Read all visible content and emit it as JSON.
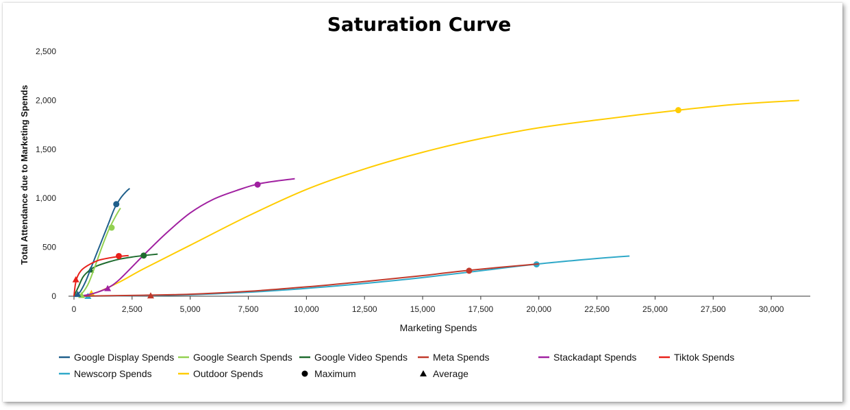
{
  "chart_data": {
    "type": "line",
    "title": "Saturation Curve",
    "xlabel": "Marketing Spends",
    "ylabel": "Total Attendance due to Marketing Spends",
    "xlim": [
      0,
      31500
    ],
    "ylim": [
      0,
      2500
    ],
    "x_ticks": [
      "0",
      "2,500",
      "5,000",
      "7,500",
      "10,000",
      "12,500",
      "15,000",
      "17,500",
      "20,000",
      "22,500",
      "25,000",
      "27,500",
      "30,000"
    ],
    "y_ticks": [
      "0",
      "500",
      "1,000",
      "1,500",
      "2,000",
      "2,500"
    ],
    "grid": false,
    "legend_position": "bottom",
    "series": [
      {
        "name": "Google Display Spends",
        "color": "#1f5f8b",
        "x": [
          0,
          250,
          500,
          750,
          1000,
          1250,
          1500,
          1750,
          2000,
          2250,
          2400
        ],
        "y": [
          0,
          40,
          150,
          300,
          450,
          600,
          750,
          900,
          1000,
          1070,
          1100
        ],
        "maximum": [
          1820,
          940
        ],
        "average": [
          160,
          20
        ]
      },
      {
        "name": "Google Search Spends",
        "color": "#92d050",
        "x": [
          0,
          300,
          600,
          900,
          1200,
          1500,
          1800,
          2000
        ],
        "y": [
          0,
          20,
          120,
          300,
          500,
          680,
          820,
          900
        ],
        "maximum": [
          1620,
          700
        ],
        "average": [
          330,
          10
        ]
      },
      {
        "name": "Google Video Spends",
        "color": "#1e6b2e",
        "x": [
          0,
          200,
          400,
          700,
          1000,
          1500,
          2000,
          2500,
          3000,
          3600
        ],
        "y": [
          0,
          100,
          200,
          270,
          310,
          350,
          380,
          400,
          415,
          430
        ],
        "maximum": [
          3000,
          415
        ],
        "average": [
          720,
          270
        ]
      },
      {
        "name": "Meta Spends",
        "color": "#c0392b",
        "x": [
          0,
          3000,
          5000,
          7500,
          10000,
          12500,
          15000,
          17000,
          20000
        ],
        "y": [
          0,
          10,
          20,
          50,
          95,
          150,
          210,
          265,
          330
        ],
        "maximum": [
          17000,
          260
        ],
        "average": [
          3300,
          5
        ]
      },
      {
        "name": "Stackadapt Spends",
        "color": "#a020a0",
        "x": [
          0,
          500,
          1000,
          1500,
          2000,
          3000,
          4000,
          5000,
          6000,
          7000,
          8000,
          9500
        ],
        "y": [
          0,
          10,
          40,
          90,
          180,
          420,
          650,
          850,
          990,
          1080,
          1150,
          1200
        ],
        "maximum": [
          7900,
          1140
        ],
        "average": [
          1450,
          80
        ]
      },
      {
        "name": "Tiktok Spends",
        "color": "#e8201a",
        "x": [
          0,
          60,
          150,
          300,
          500,
          800,
          1100,
          1500,
          1900,
          2350
        ],
        "y": [
          0,
          120,
          200,
          260,
          300,
          340,
          370,
          390,
          405,
          415
        ],
        "maximum": [
          1930,
          410
        ],
        "average": [
          80,
          170
        ]
      },
      {
        "name": "Newscorp Spends",
        "color": "#2ea8c8",
        "x": [
          0,
          2500,
          5000,
          7500,
          10000,
          12500,
          15000,
          17500,
          20000,
          22500,
          23900
        ],
        "y": [
          0,
          5,
          15,
          40,
          80,
          130,
          190,
          260,
          330,
          385,
          410
        ],
        "maximum": [
          19900,
          325
        ],
        "average": [
          600,
          0
        ]
      },
      {
        "name": "Outdoor Spends",
        "color": "#ffcc00",
        "x": [
          0,
          500,
          1000,
          2000,
          3000,
          5000,
          7500,
          10000,
          12500,
          15000,
          17500,
          20000,
          22500,
          26000,
          28500,
          31200
        ],
        "y": [
          0,
          10,
          40,
          150,
          280,
          520,
          820,
          1090,
          1300,
          1470,
          1610,
          1720,
          1800,
          1900,
          1960,
          2000
        ],
        "maximum": [
          26000,
          1900
        ],
        "average": [
          750,
          30
        ]
      }
    ],
    "marker_legend": [
      {
        "name": "Maximum",
        "symbol": "circle"
      },
      {
        "name": "Average",
        "symbol": "triangle"
      }
    ]
  }
}
